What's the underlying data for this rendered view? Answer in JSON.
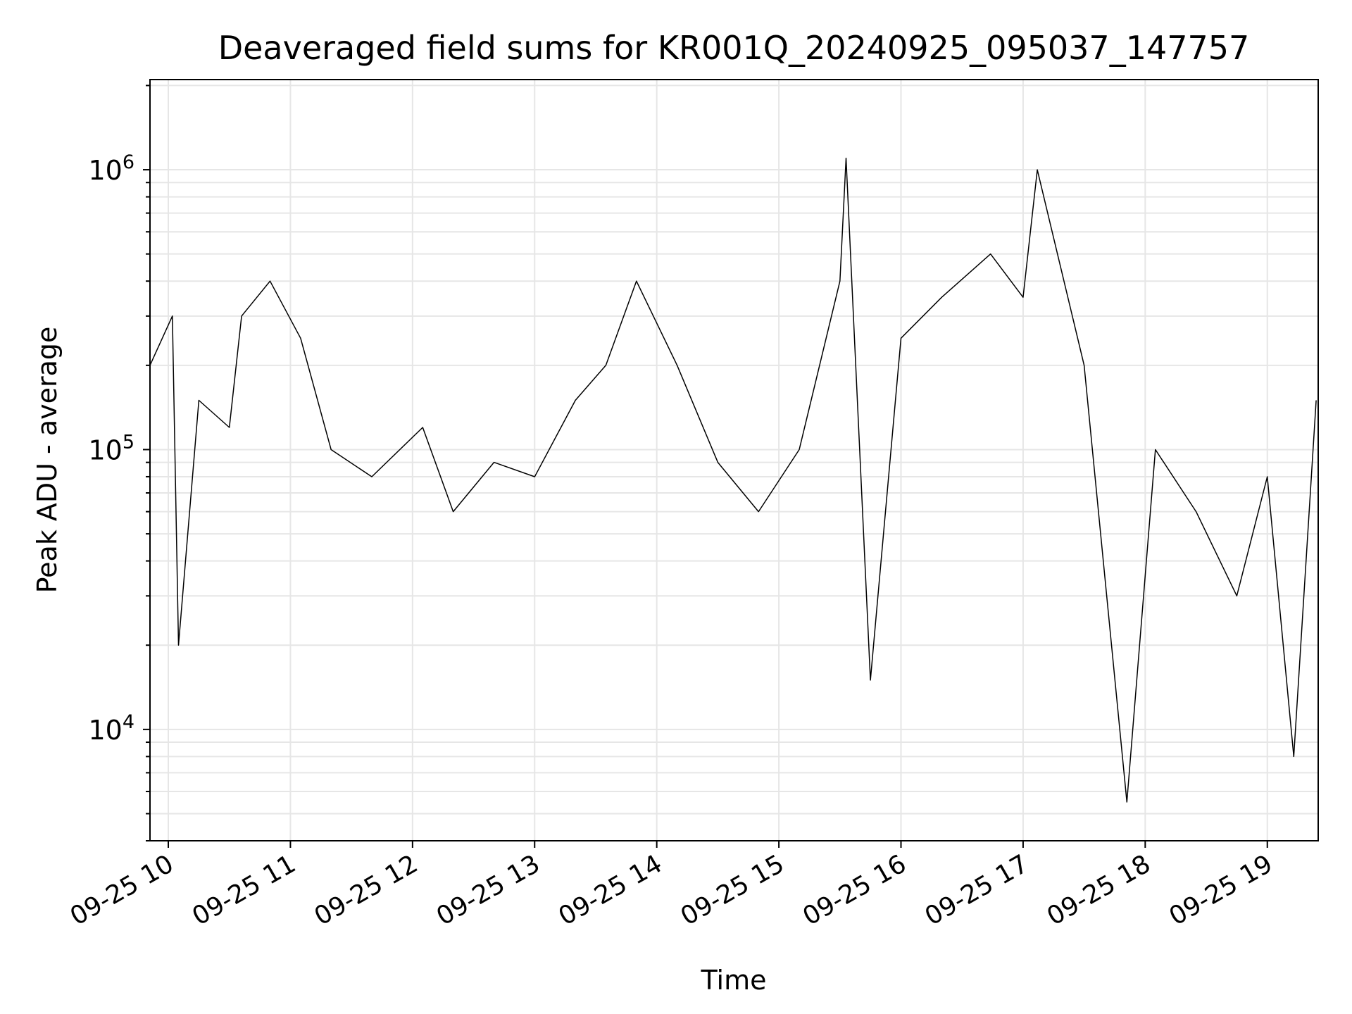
{
  "chart_data": {
    "type": "line",
    "title": "Deaveraged field sums for KR001Q_20240925_095037_147757",
    "xlabel": "Time",
    "ylabel": "Peak ADU - average",
    "yscale": "log",
    "grid": true,
    "line_color": "#000000",
    "grid_color": "#e6e6e6",
    "xlim": [
      "2024-09-25 09:51",
      "2024-09-25 19:25"
    ],
    "ylim": [
      4000,
      2100000
    ],
    "x_tick_labels": [
      "09-25 10",
      "09-25 11",
      "09-25 12",
      "09-25 13",
      "09-25 14",
      "09-25 15",
      "09-25 16",
      "09-25 17",
      "09-25 18",
      "09-25 19"
    ],
    "x_tick_values": [
      "2024-09-25 10:00",
      "2024-09-25 11:00",
      "2024-09-25 12:00",
      "2024-09-25 13:00",
      "2024-09-25 14:00",
      "2024-09-25 15:00",
      "2024-09-25 16:00",
      "2024-09-25 17:00",
      "2024-09-25 18:00",
      "2024-09-25 19:00"
    ],
    "y_ticks": [
      {
        "value": 10000,
        "base": "10",
        "exp": "4"
      },
      {
        "value": 100000,
        "base": "10",
        "exp": "5"
      },
      {
        "value": 1000000,
        "base": "10",
        "exp": "6"
      }
    ],
    "series": [
      {
        "x": [
          "2024-09-25 09:51",
          "2024-09-25 10:02",
          "2024-09-25 10:05",
          "2024-09-25 10:15",
          "2024-09-25 10:30",
          "2024-09-25 10:36",
          "2024-09-25 10:50",
          "2024-09-25 11:05",
          "2024-09-25 11:20",
          "2024-09-25 11:40",
          "2024-09-25 12:05",
          "2024-09-25 12:20",
          "2024-09-25 12:40",
          "2024-09-25 13:00",
          "2024-09-25 13:20",
          "2024-09-25 13:35",
          "2024-09-25 13:50",
          "2024-09-25 14:10",
          "2024-09-25 14:30",
          "2024-09-25 14:50",
          "2024-09-25 15:10",
          "2024-09-25 15:30",
          "2024-09-25 15:33",
          "2024-09-25 15:45",
          "2024-09-25 16:00",
          "2024-09-25 16:20",
          "2024-09-25 16:44",
          "2024-09-25 17:00",
          "2024-09-25 17:07",
          "2024-09-25 17:30",
          "2024-09-25 17:51",
          "2024-09-25 18:05",
          "2024-09-25 18:25",
          "2024-09-25 18:45",
          "2024-09-25 19:00",
          "2024-09-25 19:13",
          "2024-09-25 19:24"
        ],
        "y": [
          200000,
          300000,
          20000,
          150000,
          120000,
          300000,
          400000,
          250000,
          100000,
          80000,
          120000,
          60000,
          90000,
          80000,
          150000,
          200000,
          400000,
          200000,
          90000,
          60000,
          100000,
          400000,
          1100000,
          15000,
          250000,
          350000,
          500000,
          350000,
          1000000,
          200000,
          5500,
          100000,
          60000,
          30000,
          80000,
          8000,
          150000
        ]
      }
    ]
  }
}
